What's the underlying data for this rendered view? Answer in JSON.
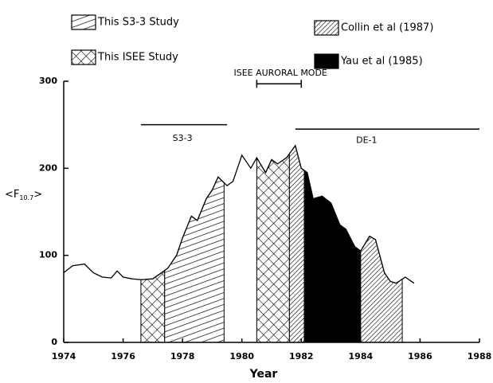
{
  "chart_data": {
    "type": "line",
    "xlabel": "Year",
    "ylabel": [
      "<F",
      "10.7",
      ">"
    ],
    "xlim": [
      1974,
      1988
    ],
    "xticks": [
      1974,
      1976,
      1978,
      1980,
      1982,
      1984,
      1986,
      1988
    ],
    "ylim": [
      0,
      300
    ],
    "yticks": [
      0,
      100,
      200,
      300
    ],
    "series": [
      {
        "color": "#000000",
        "x": [
          1974.0,
          1974.3,
          1974.7,
          1975.0,
          1975.3,
          1975.6,
          1975.8,
          1976.0,
          1976.3,
          1976.6,
          1977.0,
          1977.5,
          1977.8,
          1978.0,
          1978.3,
          1978.5,
          1978.8,
          1979.0,
          1979.2,
          1979.5,
          1979.7,
          1980.0,
          1980.3,
          1980.5,
          1980.8,
          1981.0,
          1981.2,
          1981.5,
          1981.8,
          1982.0,
          1982.2,
          1982.4,
          1982.7,
          1983.0,
          1983.3,
          1983.5,
          1983.8,
          1984.0,
          1984.3,
          1984.5,
          1984.8,
          1985.0,
          1985.2,
          1985.5,
          1985.8
        ],
        "values": [
          80,
          88,
          90,
          80,
          75,
          74,
          82,
          75,
          73,
          72,
          73,
          85,
          100,
          120,
          145,
          140,
          165,
          175,
          190,
          180,
          185,
          215,
          200,
          212,
          195,
          210,
          205,
          212,
          226,
          200,
          195,
          165,
          168,
          160,
          135,
          130,
          110,
          105,
          122,
          118,
          80,
          70,
          68,
          75,
          68
        ]
      }
    ],
    "legend": [
      {
        "name": "This S3-3 Study",
        "pattern": "s33"
      },
      {
        "name": "This ISEE Study",
        "pattern": "isee"
      },
      {
        "name": "Collin et al (1987)",
        "pattern": "collin"
      },
      {
        "name": "Yau et al (1985)",
        "pattern": "yau"
      }
    ],
    "shaded": [
      {
        "pattern": "isee",
        "x": [
          1976.6,
          1977.4
        ]
      },
      {
        "pattern": "s33",
        "x": [
          1977.4,
          1979.4
        ]
      },
      {
        "pattern": "isee",
        "x": [
          1980.5,
          1981.6
        ]
      },
      {
        "pattern": "collin",
        "x": [
          1981.6,
          1982.1
        ]
      },
      {
        "pattern": "yau",
        "x": [
          1982.1,
          1984.0
        ]
      },
      {
        "pattern": "collin",
        "x": [
          1984.0,
          1985.4
        ]
      }
    ],
    "bars": [
      {
        "x": [
          1976.6,
          1979.5
        ],
        "y": 250,
        "caps": false
      },
      {
        "x": [
          1981.8,
          1988
        ],
        "y": 245,
        "caps": false
      },
      {
        "x": [
          1980.5,
          1982.0
        ],
        "y": 297,
        "caps": true
      }
    ],
    "annotations": [
      {
        "text": "ISEE AURORAL MODE",
        "x": 1981.3,
        "y": 309
      },
      {
        "text": "S3-3",
        "x": 1978.0,
        "y": 234
      },
      {
        "text": "DE-1",
        "x": 1984.2,
        "y": 232
      }
    ]
  }
}
